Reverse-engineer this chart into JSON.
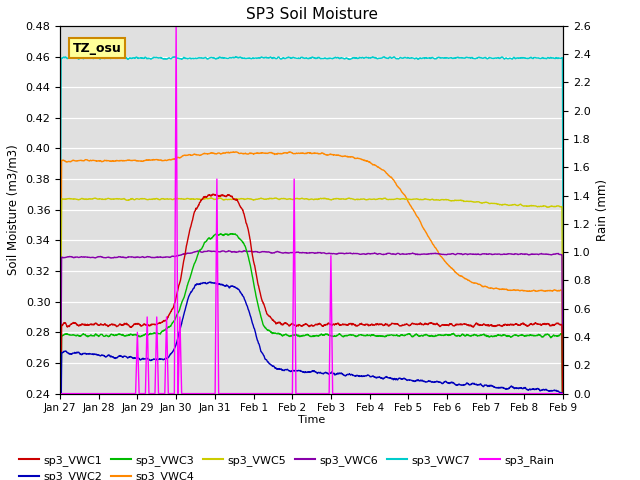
{
  "title": "SP3 Soil Moisture",
  "xlabel": "Time",
  "ylabel_left": "Soil Moisture (m3/m3)",
  "ylabel_right": "Rain (mm)",
  "ylim_left": [
    0.24,
    0.48
  ],
  "ylim_right": [
    0.0,
    2.6
  ],
  "bg_color": "#e0e0e0",
  "annotation_text": "TZ_osu",
  "annotation_bg": "#ffff99",
  "annotation_border": "#cc8800",
  "x_tick_labels": [
    "Jan 27",
    "Jan 28",
    "Jan 29",
    "Jan 30",
    "Jan 31",
    "Feb 1",
    "Feb 2",
    "Feb 3",
    "Feb 4",
    "Feb 5",
    "Feb 6",
    "Feb 7",
    "Feb 8",
    "Feb 9"
  ],
  "series": {
    "sp3_VWC1": {
      "color": "#cc0000",
      "lw": 1.0
    },
    "sp3_VWC2": {
      "color": "#0000bb",
      "lw": 1.0
    },
    "sp3_VWC3": {
      "color": "#00bb00",
      "lw": 1.0
    },
    "sp3_VWC4": {
      "color": "#ff8800",
      "lw": 1.0
    },
    "sp3_VWC5": {
      "color": "#cccc00",
      "lw": 1.0
    },
    "sp3_VWC6": {
      "color": "#8800aa",
      "lw": 1.0
    },
    "sp3_VWC7": {
      "color": "#00cccc",
      "lw": 1.0
    },
    "sp3_Rain": {
      "color": "#ff00ff",
      "lw": 1.0
    }
  }
}
